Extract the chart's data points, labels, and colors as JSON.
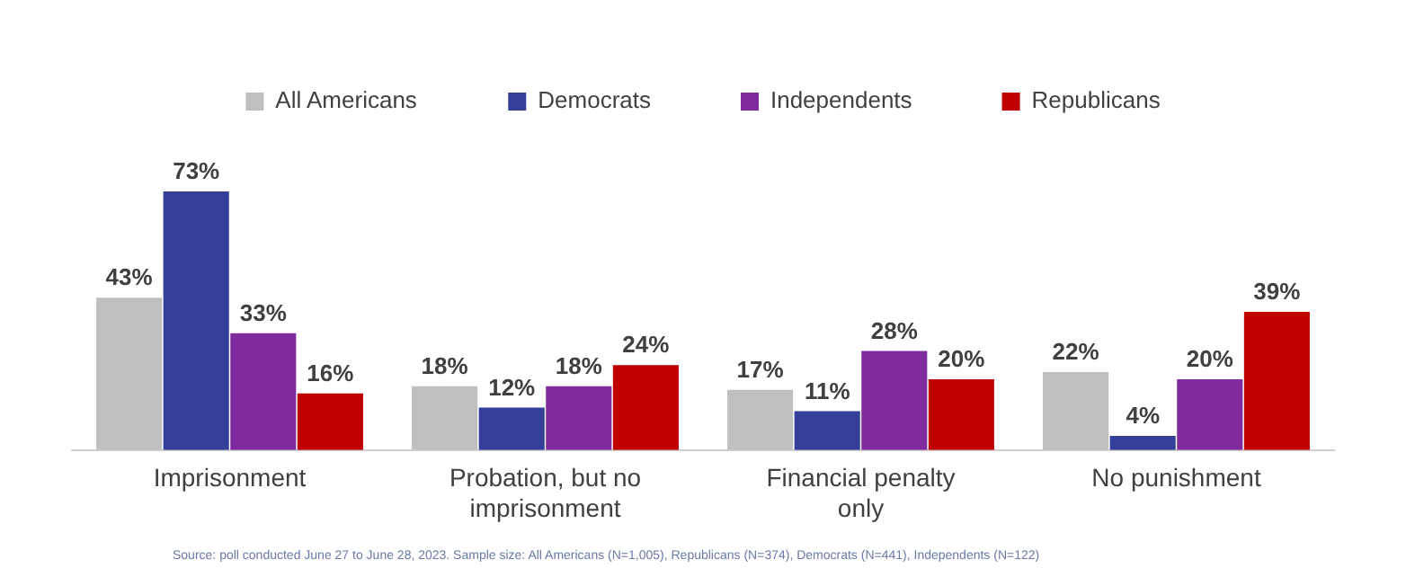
{
  "chart_data": {
    "type": "bar",
    "categories": [
      "Imprisonment",
      "Probation, but no imprisonment",
      "Financial penalty only",
      "No punishment"
    ],
    "series": [
      {
        "name": "All Americans",
        "color": "#bfbfbf",
        "values": [
          43,
          18,
          17,
          22
        ],
        "value_labels": [
          "43%",
          "18%",
          "17%",
          "22%"
        ]
      },
      {
        "name": "Democrats",
        "color": "#333f99",
        "values": [
          73,
          12,
          11,
          4
        ],
        "value_labels": [
          "73%",
          "12%",
          "11%",
          "4%"
        ]
      },
      {
        "name": "Independents",
        "color": "#7f2b9e",
        "values": [
          33,
          18,
          28,
          20
        ],
        "value_labels": [
          "33%",
          "18%",
          "28%",
          "20%"
        ]
      },
      {
        "name": "Republicans",
        "color": "#c00000",
        "values": [
          16,
          24,
          20,
          39
        ],
        "value_labels": [
          "16%",
          "24%",
          "20%",
          "39%"
        ]
      }
    ],
    "legend": "top",
    "grid": false,
    "annotations": [
      "Source: poll conducted June 27 to June 28, 2023. Sample size: All Americans (N=1,005), Republicans (N=374), Democrats (N=441), Independents (N=122)"
    ]
  }
}
